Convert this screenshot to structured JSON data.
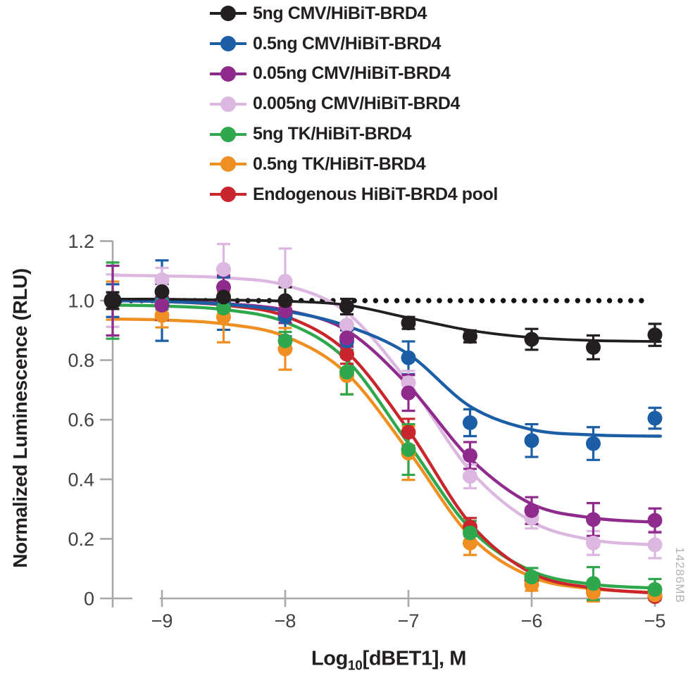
{
  "chart_data": {
    "type": "scatter",
    "description": "Dose-response curves, normalized luminescence vs log10 dBET1 concentration",
    "x_positions_log": [
      "control",
      -9,
      -8.5,
      -8,
      -7.5,
      -7,
      -6.5,
      -6,
      -5.5,
      -5
    ],
    "x_axis": {
      "label_prefix": "Log",
      "label_sub": "10",
      "label_suffix": "[dBET1], M",
      "ticks": [
        "−9",
        "−8",
        "−7",
        "−6",
        "−5"
      ],
      "tick_logs": [
        -9,
        -8,
        -7,
        -6,
        -5
      ],
      "range_log": [
        -9,
        -5
      ]
    },
    "y_axis": {
      "label": "Normalized Luminescence (RLU)",
      "ticks": [
        "1.2",
        "1.0",
        "0.8",
        "0.6",
        "0.4",
        "0.2",
        "0"
      ],
      "tick_values": [
        1.2,
        1.0,
        0.8,
        0.6,
        0.4,
        0.2,
        0
      ],
      "range": [
        0,
        1.2
      ],
      "grid": false
    },
    "reference_line": {
      "y": 1.0,
      "style": "dotted",
      "color": "#111111"
    },
    "axis_color": "#a7a9ac",
    "tick_label_color": "#414042",
    "legend_position": "top-left",
    "watermark": "14286MB",
    "series": [
      {
        "name": "5ng CMV/HiBiT-BRD4",
        "color": "#231f20",
        "values": [
          1.0,
          1.03,
          1.012,
          1.0,
          0.98,
          0.925,
          0.88,
          0.87,
          0.843,
          0.885
        ],
        "errors": [
          0.028,
          0.026,
          0.03,
          0.045,
          0.026,
          0.02,
          0.02,
          0.035,
          0.04,
          0.037
        ],
        "curve": [
          1.005,
          1.005,
          1.002,
          0.998,
          0.985,
          0.942,
          0.9,
          0.876,
          0.866,
          0.863
        ]
      },
      {
        "name": "0.5ng CMV/HiBiT-BRD4",
        "color": "#1b5ea6",
        "values": [
          1.0,
          1.0,
          0.99,
          0.945,
          0.865,
          0.808,
          0.59,
          0.53,
          0.52,
          0.605
        ],
        "errors": [
          0.055,
          0.135,
          0.088,
          0.065,
          0.035,
          0.055,
          0.045,
          0.055,
          0.055,
          0.035
        ],
        "curve": [
          1.0,
          0.997,
          0.988,
          0.965,
          0.915,
          0.82,
          0.645,
          0.567,
          0.549,
          0.545
        ]
      },
      {
        "name": "0.05ng CMV/HiBiT-BRD4",
        "color": "#8f2b8d",
        "values": [
          1.0,
          0.985,
          1.045,
          0.965,
          0.875,
          0.69,
          0.48,
          0.295,
          0.265,
          0.262
        ],
        "errors": [
          0.117,
          0.05,
          0.04,
          0.04,
          0.03,
          0.06,
          0.045,
          0.045,
          0.055,
          0.04
        ],
        "curve": [
          1.0,
          0.998,
          0.99,
          0.968,
          0.9,
          0.715,
          0.47,
          0.317,
          0.27,
          0.256
        ]
      },
      {
        "name": "0.005ng CMV/HiBiT-BRD4",
        "color": "#dcb8e0",
        "values": [
          1.0,
          1.07,
          1.105,
          1.065,
          0.918,
          0.724,
          0.41,
          0.27,
          0.186,
          0.18
        ],
        "errors": [
          0.088,
          0.04,
          0.085,
          0.11,
          0.035,
          0.04,
          0.04,
          0.035,
          0.04,
          0.045
        ],
        "curve": [
          1.085,
          1.083,
          1.077,
          1.052,
          0.96,
          0.725,
          0.43,
          0.258,
          0.196,
          0.18
        ]
      },
      {
        "name": "5ng TK/HiBiT-BRD4",
        "color": "#2fa84d",
        "values": [
          1.0,
          0.99,
          0.975,
          0.865,
          0.76,
          0.5,
          0.22,
          0.072,
          0.05,
          0.03
        ],
        "errors": [
          0.128,
          0.02,
          0.02,
          0.03,
          0.075,
          0.085,
          0.04,
          0.03,
          0.055,
          0.035
        ],
        "curve": [
          0.985,
          0.982,
          0.97,
          0.928,
          0.8,
          0.52,
          0.235,
          0.092,
          0.047,
          0.035
        ]
      },
      {
        "name": "0.5ng TK/HiBiT-BRD4",
        "color": "#ef8f22",
        "values": [
          1.0,
          0.95,
          0.945,
          0.838,
          0.748,
          0.488,
          0.186,
          0.046,
          0.02,
          0.012
        ],
        "errors": [
          0.064,
          0.04,
          0.085,
          0.07,
          0.062,
          0.09,
          0.04,
          0.02,
          0.03,
          0.015
        ],
        "curve": [
          0.938,
          0.935,
          0.922,
          0.88,
          0.755,
          0.495,
          0.21,
          0.072,
          0.032,
          0.02
        ]
      },
      {
        "name": "Endogenous HiBiT-BRD4 pool",
        "color": "#c9252c",
        "values": [
          1.0,
          1.005,
          0.995,
          0.955,
          0.82,
          0.558,
          0.24,
          0.062,
          0.03,
          0.006
        ],
        "errors": [
          0.028,
          0.02,
          0.02,
          0.03,
          0.032,
          0.045,
          0.03,
          0.02,
          0.02,
          0.01
        ],
        "curve": [
          1.0,
          0.997,
          0.985,
          0.948,
          0.828,
          0.565,
          0.252,
          0.085,
          0.035,
          0.018
        ]
      }
    ],
    "curve_z_order": [
      3,
      5,
      4,
      6,
      2,
      1,
      0
    ],
    "point_z_order": [
      6,
      1,
      5,
      4,
      3,
      2,
      0
    ]
  }
}
